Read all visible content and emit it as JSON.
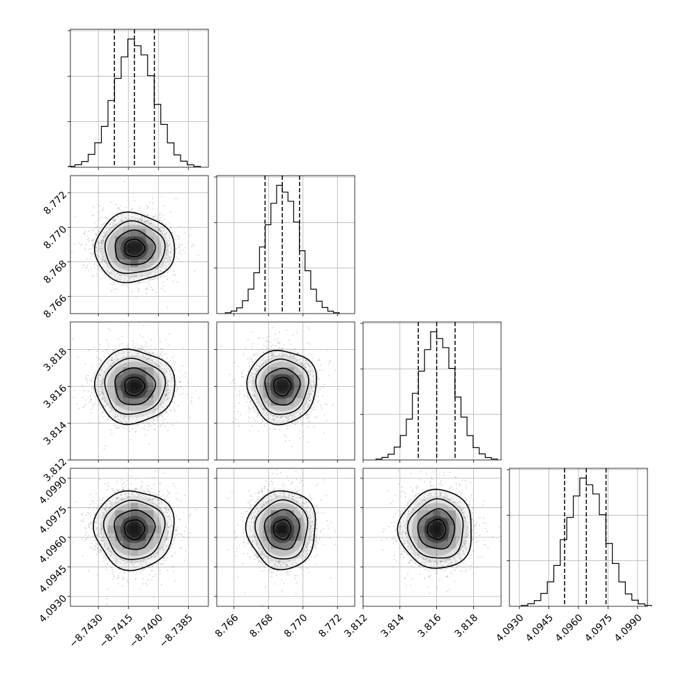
{
  "chart_data": {
    "type": "corner",
    "title": "",
    "grid": true,
    "colors": {
      "line": "#000000",
      "scatter": "#9a9a9a",
      "density": "#000000",
      "grid": "#b0b0b0"
    },
    "parameters": [
      {
        "label": "",
        "range": [
          -8.7444,
          -8.7375
        ],
        "ticks": [
          -8.743,
          -8.7415,
          -8.74,
          -8.7385
        ],
        "tick_labels": [
          "−8.7430",
          "−8.7415",
          "−8.7400",
          "−8.7385"
        ],
        "mean": -8.7412,
        "std": 0.001,
        "quantiles": [
          -8.7422,
          -8.7412,
          -8.7402
        ]
      },
      {
        "label": "",
        "range": [
          8.765,
          8.773
        ],
        "ticks": [
          8.766,
          8.768,
          8.77,
          8.772
        ],
        "tick_labels": [
          "8.766",
          "8.768",
          "8.770",
          "8.772"
        ],
        "mean": 8.7688,
        "std": 0.001,
        "quantiles": [
          8.7678,
          8.7688,
          8.7698
        ]
      },
      {
        "label": "",
        "range": [
          3.812,
          3.8195
        ],
        "ticks": [
          3.812,
          3.814,
          3.816,
          3.818
        ],
        "tick_labels": [
          "3.812",
          "3.814",
          "3.816",
          "3.818"
        ],
        "mean": 3.816,
        "std": 0.001,
        "quantiles": [
          3.815,
          3.816,
          3.817
        ]
      },
      {
        "label": "",
        "range": [
          4.0925,
          4.0995
        ],
        "ticks": [
          4.093,
          4.0945,
          4.096,
          4.0975,
          4.099
        ],
        "tick_labels": [
          "4.0930",
          "4.0945",
          "4.0960",
          "4.0975",
          "4.0990"
        ],
        "mean": 4.0964,
        "std": 0.001,
        "quantiles": [
          4.0953,
          4.0964,
          4.0974
        ]
      }
    ],
    "histogram_bins": 20,
    "contour_levels": [
      0.5,
      1.0,
      1.5,
      2.0
    ],
    "scatter_points_per_panel": 1800
  }
}
